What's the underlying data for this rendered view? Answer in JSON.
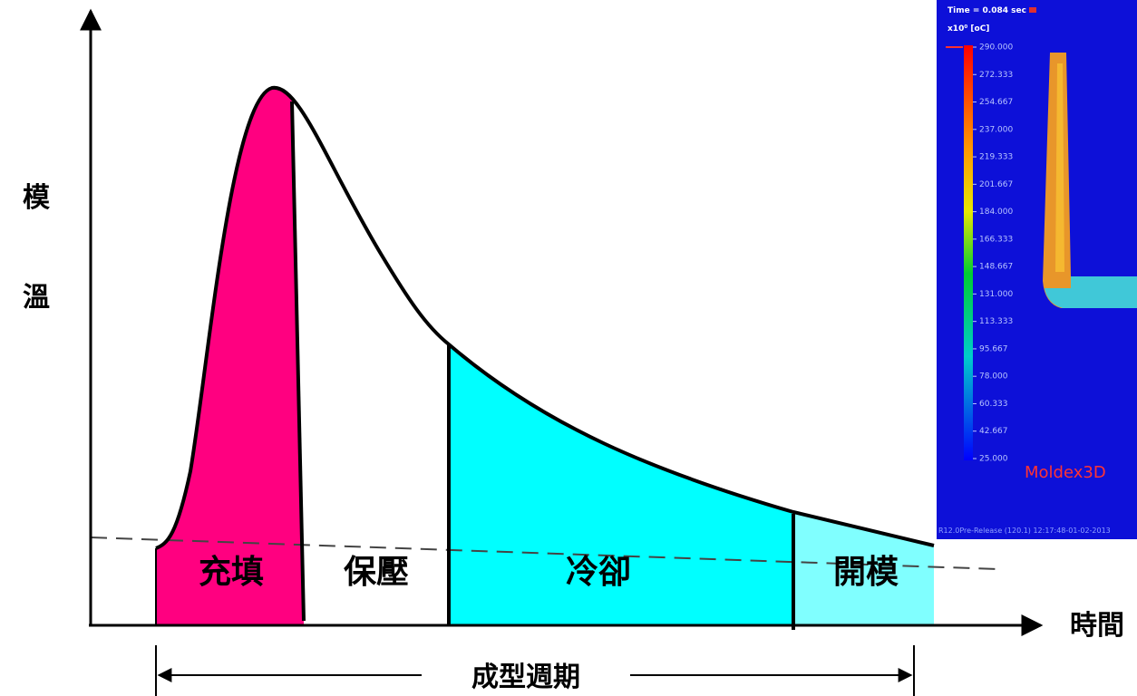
{
  "diagram": {
    "y_axis_label": [
      "模",
      "溫"
    ],
    "x_axis_label": "時間",
    "phases": [
      "充填",
      "保壓",
      "冷卻",
      "開模"
    ],
    "cycle_label": "成型週期",
    "inset": {
      "time": "Time = 0.084 sec",
      "unit": "x10⁰ [oC]",
      "scale": [
        "290.000",
        "272.333",
        "254.667",
        "237.000",
        "219.333",
        "201.667",
        "184.000",
        "166.333",
        "148.667",
        "131.000",
        "113.333",
        "95.667",
        "78.000",
        "60.333",
        "42.667",
        "25.000"
      ],
      "brand": "Moldex3D",
      "footer": "R12.0Pre-Release (120.1) 12:17:48-01-02-2013"
    }
  }
}
